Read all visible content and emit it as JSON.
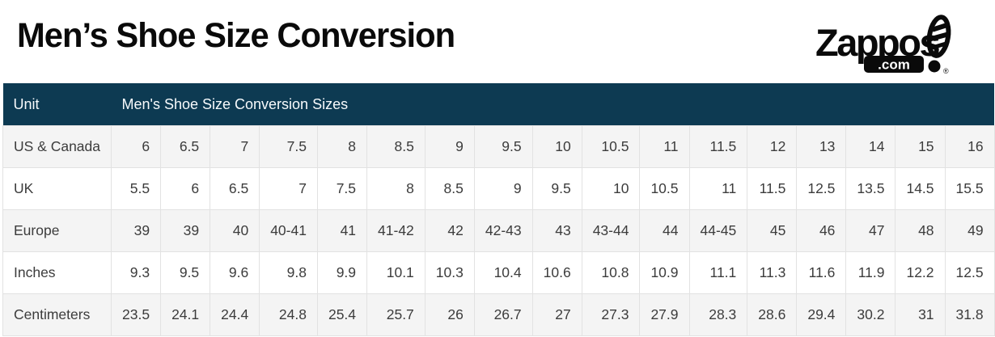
{
  "page": {
    "title": "Men’s Shoe Size Conversion"
  },
  "logo": {
    "brand": "Zappos",
    "tld": ".com",
    "registered": "®"
  },
  "table": {
    "header": {
      "unit_label": "Unit",
      "sizes_label": "Men's Shoe Size Conversion Sizes"
    },
    "rows": [
      {
        "label": "US & Canada",
        "values": [
          "6",
          "6.5",
          "7",
          "7.5",
          "8",
          "8.5",
          "9",
          "9.5",
          "10",
          "10.5",
          "11",
          "11.5",
          "12",
          "13",
          "14",
          "15",
          "16"
        ]
      },
      {
        "label": "UK",
        "values": [
          "5.5",
          "6",
          "6.5",
          "7",
          "7.5",
          "8",
          "8.5",
          "9",
          "9.5",
          "10",
          "10.5",
          "11",
          "11.5",
          "12.5",
          "13.5",
          "14.5",
          "15.5"
        ]
      },
      {
        "label": "Europe",
        "values": [
          "39",
          "39",
          "40",
          "40-41",
          "41",
          "41-42",
          "42",
          "42-43",
          "43",
          "43-44",
          "44",
          "44-45",
          "45",
          "46",
          "47",
          "48",
          "49"
        ]
      },
      {
        "label": "Inches",
        "values": [
          "9.3",
          "9.5",
          "9.6",
          "9.8",
          "9.9",
          "10.1",
          "10.3",
          "10.4",
          "10.6",
          "10.8",
          "10.9",
          "11.1",
          "11.3",
          "11.6",
          "11.9",
          "12.2",
          "12.5"
        ]
      },
      {
        "label": "Centimeters",
        "values": [
          "23.5",
          "24.1",
          "24.4",
          "24.8",
          "25.4",
          "25.7",
          "26",
          "26.7",
          "27",
          "27.3",
          "27.9",
          "28.3",
          "28.6",
          "29.4",
          "30.2",
          "31",
          "31.8"
        ]
      }
    ]
  },
  "chart_data": {
    "type": "table",
    "title": "Men’s Shoe Size Conversion",
    "row_headers": [
      "US & Canada",
      "UK",
      "Europe",
      "Inches",
      "Centimeters"
    ],
    "rows": [
      [
        "6",
        "6.5",
        "7",
        "7.5",
        "8",
        "8.5",
        "9",
        "9.5",
        "10",
        "10.5",
        "11",
        "11.5",
        "12",
        "13",
        "14",
        "15",
        "16"
      ],
      [
        "5.5",
        "6",
        "6.5",
        "7",
        "7.5",
        "8",
        "8.5",
        "9",
        "9.5",
        "10",
        "10.5",
        "11",
        "11.5",
        "12.5",
        "13.5",
        "14.5",
        "15.5"
      ],
      [
        "39",
        "39",
        "40",
        "40-41",
        "41",
        "41-42",
        "42",
        "42-43",
        "43",
        "43-44",
        "44",
        "44-45",
        "45",
        "46",
        "47",
        "48",
        "49"
      ],
      [
        "9.3",
        "9.5",
        "9.6",
        "9.8",
        "9.9",
        "10.1",
        "10.3",
        "10.4",
        "10.6",
        "10.8",
        "10.9",
        "11.1",
        "11.3",
        "11.6",
        "11.9",
        "12.2",
        "12.5"
      ],
      [
        "23.5",
        "24.1",
        "24.4",
        "24.8",
        "25.4",
        "25.7",
        "26",
        "26.7",
        "27",
        "27.3",
        "27.9",
        "28.3",
        "28.6",
        "29.4",
        "30.2",
        "31",
        "31.8"
      ]
    ]
  },
  "colors": {
    "header_bg": "#0d3a52",
    "row_alt_bg": "#f4f4f4",
    "row_bg": "#ffffff",
    "border": "#e2e2e2",
    "text": "#3c3c3c",
    "header_text": "#f7fafc",
    "title": "#0a0a0a"
  }
}
